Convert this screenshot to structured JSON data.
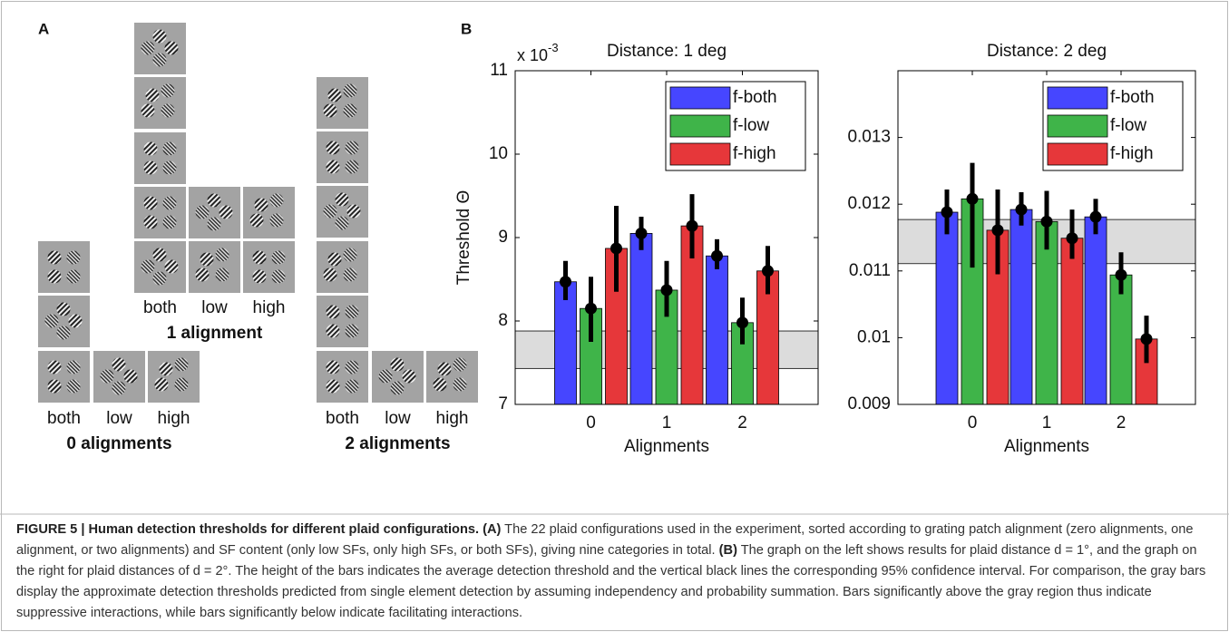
{
  "panel_labels": [
    "A",
    "B"
  ],
  "panel_a": {
    "groups": [
      {
        "columns": [
          "both",
          "low",
          "high"
        ],
        "label": "0 alignments"
      },
      {
        "columns": [
          "both",
          "low",
          "high"
        ],
        "label": "1 alignment"
      },
      {
        "columns": [
          "both",
          "low",
          "high"
        ],
        "label": "2 alignments"
      }
    ]
  },
  "chart_data": [
    {
      "type": "bar",
      "title": "Distance: 1 deg",
      "y_multiplier": "x 10",
      "y_multiplier_exponent": "-3",
      "y_label": "Threshold Θ",
      "x_label": "Alignments",
      "categories": [
        "0",
        "1",
        "2"
      ],
      "ylim": [
        7,
        11
      ],
      "yticks": [
        7,
        8,
        9,
        10,
        11
      ],
      "reference_band": [
        7.43,
        7.88
      ],
      "legend": "top-right",
      "grid": false,
      "series": [
        {
          "name": "f-both",
          "color": "#4646ff",
          "values": [
            8.47,
            9.05,
            8.78
          ],
          "ci_low": [
            8.25,
            8.85,
            8.62
          ],
          "ci_high": [
            8.72,
            9.25,
            8.98
          ]
        },
        {
          "name": "f-low",
          "color": "#3fb449",
          "values": [
            8.15,
            8.37,
            7.98
          ],
          "ci_low": [
            7.75,
            8.05,
            7.72
          ],
          "ci_high": [
            8.53,
            8.72,
            8.28
          ]
        },
        {
          "name": "f-high",
          "color": "#e6373a",
          "values": [
            8.87,
            9.14,
            8.6
          ],
          "ci_low": [
            8.35,
            8.75,
            8.32
          ],
          "ci_high": [
            9.38,
            9.52,
            8.9
          ]
        }
      ]
    },
    {
      "type": "bar",
      "title": "Distance: 2 deg",
      "x_label": "Alignments",
      "categories": [
        "0",
        "1",
        "2"
      ],
      "ylim": [
        0.009,
        0.014
      ],
      "yticks": [
        0.009,
        0.01,
        0.011,
        0.012,
        0.013
      ],
      "reference_band": [
        0.01111,
        0.01177
      ],
      "legend": "top-right",
      "grid": false,
      "series": [
        {
          "name": "f-both",
          "color": "#4646ff",
          "values": [
            0.01188,
            0.01192,
            0.01181
          ],
          "ci_low": [
            0.01155,
            0.01168,
            0.01155
          ],
          "ci_high": [
            0.01222,
            0.01218,
            0.01208
          ]
        },
        {
          "name": "f-low",
          "color": "#3fb449",
          "values": [
            0.01208,
            0.01174,
            0.01094
          ],
          "ci_low": [
            0.01105,
            0.01132,
            0.01065
          ],
          "ci_high": [
            0.01262,
            0.0122,
            0.01128
          ]
        },
        {
          "name": "f-high",
          "color": "#e6373a",
          "values": [
            0.01161,
            0.01149,
            0.00998
          ],
          "ci_low": [
            0.01095,
            0.01118,
            0.00962
          ],
          "ci_high": [
            0.01222,
            0.01192,
            0.01033
          ]
        }
      ]
    }
  ],
  "caption": {
    "heading": "FIGURE 5 | Human detection thresholds for different plaid configurations.",
    "a_label": "(A)",
    "a_text": " The 22 plaid configurations used in the experiment, sorted according to grating patch alignment (zero alignments, one alignment, or two alignments) and SF content (only low SFs, only high SFs, or both SFs), giving nine categories in total.",
    "b_label": "(B)",
    "b_text": " The graph on the left shows results for plaid distance d = 1°, and the graph on the right for plaid distances of d = 2°. The height of the bars indicates the average detection threshold and the vertical black lines the corresponding 95% confidence interval. For comparison, the gray bars display the approximate detection thresholds predicted from single element detection by assuming independency and probability summation. Bars significantly above the gray region thus indicate suppressive interactions, while bars significantly below indicate facilitating interactions."
  }
}
